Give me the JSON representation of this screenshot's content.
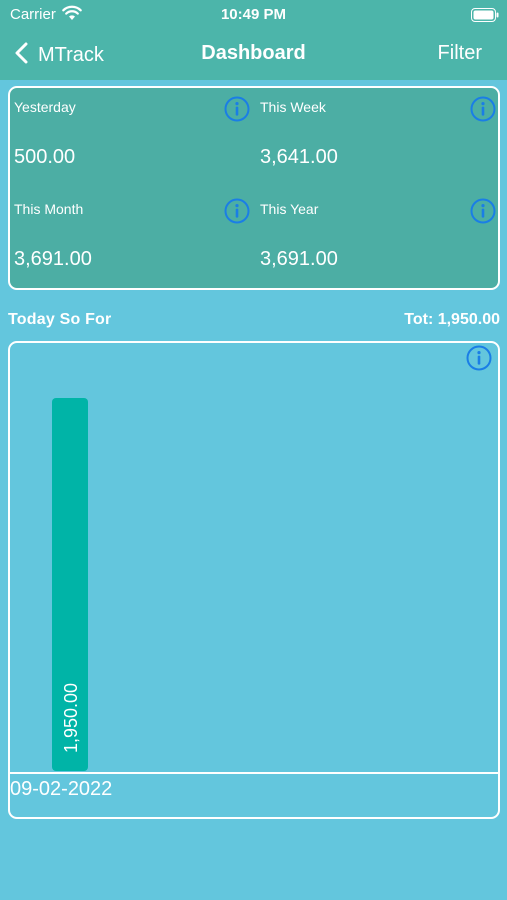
{
  "status_bar": {
    "carrier": "Carrier",
    "time": "10:49 PM"
  },
  "nav": {
    "back_label": "MTrack",
    "title": "Dashboard",
    "filter_label": "Filter"
  },
  "summary": [
    {
      "label": "Yesterday",
      "value": "500.00"
    },
    {
      "label": "This Week",
      "value": "3,641.00"
    },
    {
      "label": "This Month",
      "value": "3,691.00"
    },
    {
      "label": "This Year",
      "value": "3,691.00"
    }
  ],
  "today": {
    "label": "Today So For",
    "total": "Tot: 1,950.00"
  },
  "colors": {
    "header": "#4cb5aa",
    "background": "#63c6dd",
    "card": "#4caea4",
    "bar": "#00b4a7",
    "info_icon": "#1a7ee6"
  },
  "chart_data": {
    "type": "bar",
    "categories": [
      "09-02-2022"
    ],
    "values": [
      1950
    ],
    "value_labels": [
      "1,950.00"
    ],
    "title": "",
    "xlabel": "",
    "ylabel": "",
    "ylim": [
      0,
      1950
    ]
  }
}
